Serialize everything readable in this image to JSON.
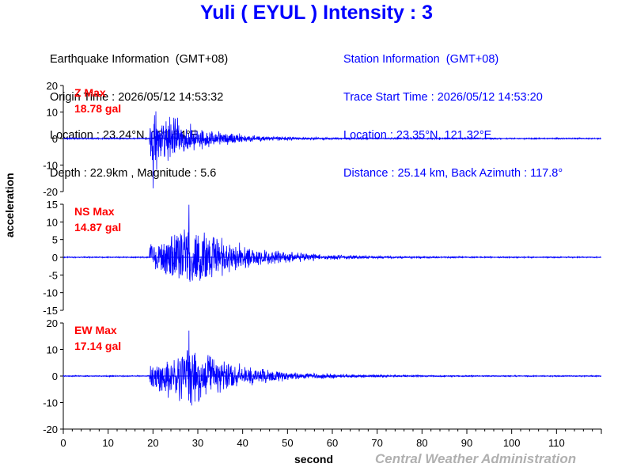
{
  "header": {
    "title": "Yuli ( EYUL ) Intensity : 3"
  },
  "earthquake_info": {
    "heading": "Earthquake Information  (GMT+08)",
    "origin_time": "Origin Time : 2026/05/12 14:53:32",
    "location": "Location : 23.24°N, 121.54°E",
    "depth_magnitude": "Depth : 22.9km , Magnitude : 5.6"
  },
  "station_info": {
    "heading": "Station Information  (GMT+08)",
    "trace_start": "Trace Start Time : 2026/05/12 14:53:20",
    "location": "Location : 23.35°N, 121.32°E",
    "distance": "Distance : 25.14 km, Back Azimuth : 117.8°"
  },
  "axes": {
    "ylabel": "acceleration",
    "xlabel": "second"
  },
  "credit": "Central Weather Administration",
  "colors": {
    "trace": "#0000ff",
    "max_label": "#ff0000",
    "axis": "#000000",
    "credit": "#b0b0b0"
  },
  "chart_data": [
    {
      "type": "line",
      "component": "Z",
      "max_label": "Z Max",
      "max_value": "18.78 gal",
      "peak_gal": 18.78,
      "ylim": [
        -20,
        20
      ],
      "yticks": [
        20,
        10,
        0,
        -10,
        -20
      ],
      "xlim": [
        0,
        120
      ],
      "xticks": [
        0,
        10,
        20,
        30,
        40,
        50,
        60,
        70,
        80,
        90,
        100,
        110
      ],
      "onset_s": 19.2,
      "peak_time_s": 20,
      "decay_s": 9,
      "noise_gal": 0.3,
      "seed": 11
    },
    {
      "type": "line",
      "component": "NS",
      "max_label": "NS Max",
      "max_value": "14.87 gal",
      "peak_gal": 14.87,
      "ylim": [
        -15,
        15
      ],
      "yticks": [
        15,
        10,
        5,
        0,
        -5,
        -10,
        -15
      ],
      "xlim": [
        0,
        120
      ],
      "xticks": [
        0,
        10,
        20,
        30,
        40,
        50,
        60,
        70,
        80,
        90,
        100,
        110
      ],
      "onset_s": 19.2,
      "peak_time_s": 28,
      "decay_s": 11,
      "noise_gal": 0.2,
      "seed": 23
    },
    {
      "type": "line",
      "component": "EW",
      "max_label": "EW Max",
      "max_value": "17.14 gal",
      "peak_gal": 17.14,
      "ylim": [
        -20,
        20
      ],
      "yticks": [
        20,
        10,
        0,
        -10,
        -20
      ],
      "xlim": [
        0,
        120
      ],
      "xticks": [
        0,
        10,
        20,
        30,
        40,
        50,
        60,
        70,
        80,
        90,
        100,
        110
      ],
      "onset_s": 19.2,
      "peak_time_s": 28,
      "decay_s": 11,
      "noise_gal": 0.25,
      "seed": 37
    }
  ]
}
